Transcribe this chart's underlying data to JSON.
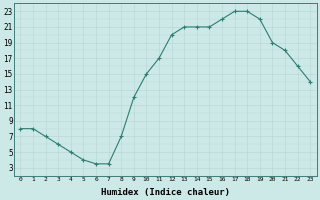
{
  "x": [
    0,
    1,
    2,
    3,
    4,
    5,
    6,
    7,
    8,
    9,
    10,
    11,
    12,
    13,
    14,
    15,
    16,
    17,
    18,
    19,
    20,
    21,
    22,
    23
  ],
  "y": [
    8,
    8,
    7,
    6,
    5,
    4,
    3.5,
    3.5,
    7,
    12,
    15,
    17,
    20,
    21,
    21,
    21,
    22,
    23,
    23,
    22,
    19,
    18,
    16,
    14
  ],
  "line_color": "#2e7d6e",
  "marker": "+",
  "bg_color": "#cce9e7",
  "grid_major_color": "#b8d8d6",
  "grid_minor_color": "#cde6e4",
  "xlabel": "Humidex (Indice chaleur)",
  "ylabel_ticks": [
    3,
    5,
    7,
    9,
    11,
    13,
    15,
    17,
    19,
    21,
    23
  ],
  "ylim": [
    2,
    24
  ],
  "xlim": [
    -0.5,
    23.5
  ],
  "xticks": [
    0,
    1,
    2,
    3,
    4,
    5,
    6,
    7,
    8,
    9,
    10,
    11,
    12,
    13,
    14,
    15,
    16,
    17,
    18,
    19,
    20,
    21,
    22,
    23
  ],
  "xtick_labels": [
    "0",
    "1",
    "2",
    "3",
    "4",
    "5",
    "6",
    "7",
    "8",
    "9",
    "10",
    "11",
    "12",
    "13",
    "14",
    "15",
    "16",
    "17",
    "18",
    "19",
    "20",
    "21",
    "22",
    "23"
  ],
  "xlabel_fontsize": 6.5,
  "ytick_fontsize": 5.5,
  "xtick_fontsize": 4.5,
  "linewidth": 0.8,
  "markersize": 3.0,
  "markeredgewidth": 0.8,
  "spine_color": "#3d7d78"
}
